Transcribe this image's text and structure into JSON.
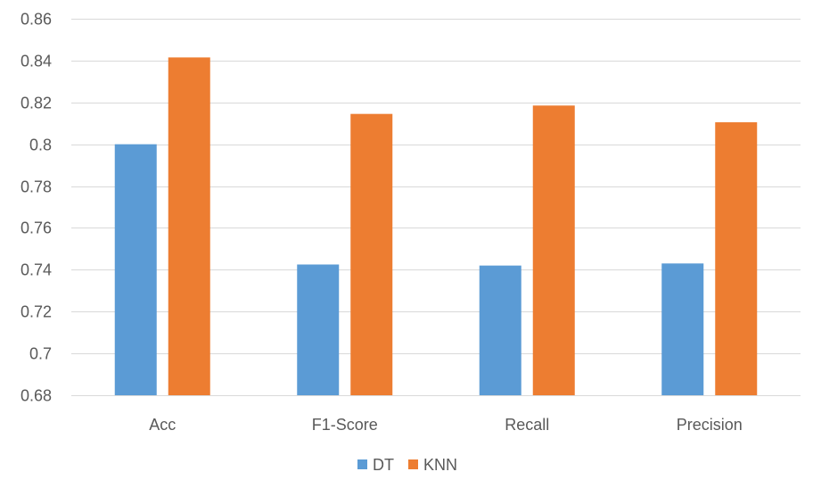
{
  "chart_data": {
    "type": "bar",
    "title": "",
    "xlabel": "",
    "ylabel": "",
    "categories": [
      "Acc",
      "F1-Score",
      "Recall",
      "Precision"
    ],
    "series": [
      {
        "name": "DT",
        "color": "#5B9BD5",
        "values": [
          0.8,
          0.7425,
          0.742,
          0.743
        ]
      },
      {
        "name": "KNN",
        "color": "#ED7D31",
        "values": [
          0.8415,
          0.8145,
          0.8185,
          0.8105
        ]
      }
    ],
    "ylim": [
      0.68,
      0.86
    ],
    "yticks": [
      0.68,
      0.7,
      0.72,
      0.74,
      0.76,
      0.78,
      0.8,
      0.82,
      0.84,
      0.86
    ],
    "ytick_labels": [
      "0.68",
      "0.7",
      "0.72",
      "0.74",
      "0.76",
      "0.78",
      "0.8",
      "0.82",
      "0.84",
      "0.86"
    ],
    "grid": true,
    "gridline_color": "#D9D9D9",
    "legend_position": "bottom"
  }
}
